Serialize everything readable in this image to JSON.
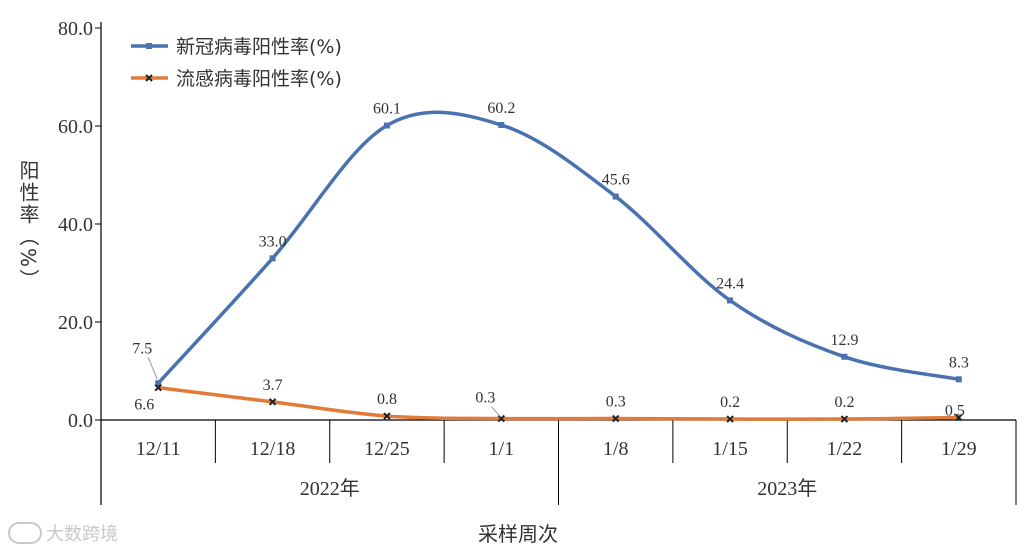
{
  "chart_data": {
    "type": "line",
    "xlabel": "采样周次",
    "ylabel": "阳性率（%）",
    "ylim": [
      0,
      80
    ],
    "yticks": [
      "0.0",
      "20.0",
      "40.0",
      "60.0",
      "80.0"
    ],
    "categories": [
      "12/11",
      "12/18",
      "12/25",
      "1/1",
      "1/8",
      "1/15",
      "1/22",
      "1/29"
    ],
    "year_groups": [
      {
        "label": "2022年",
        "span": [
          0,
          3
        ]
      },
      {
        "label": "2023年",
        "span": [
          4,
          7
        ]
      }
    ],
    "legend_position": "top-left",
    "series": [
      {
        "name": "新冠病毒阳性率(%)",
        "color": "#4a72b0",
        "values": [
          7.5,
          33.0,
          60.1,
          60.2,
          45.6,
          24.4,
          12.9,
          8.3
        ],
        "labels": [
          "7.5",
          "33.0",
          "60.1",
          "60.2",
          "45.6",
          "24.4",
          "12.9",
          "8.3"
        ]
      },
      {
        "name": "流感病毒阳性率(%)",
        "color": "#e07b39",
        "values": [
          6.6,
          3.7,
          0.8,
          0.3,
          0.3,
          0.2,
          0.2,
          0.5
        ],
        "labels": [
          "6.6",
          "3.7",
          "0.8",
          "0.3",
          "0.3",
          "0.2",
          "0.2",
          "0.5"
        ]
      }
    ]
  },
  "watermark": "大数跨境"
}
